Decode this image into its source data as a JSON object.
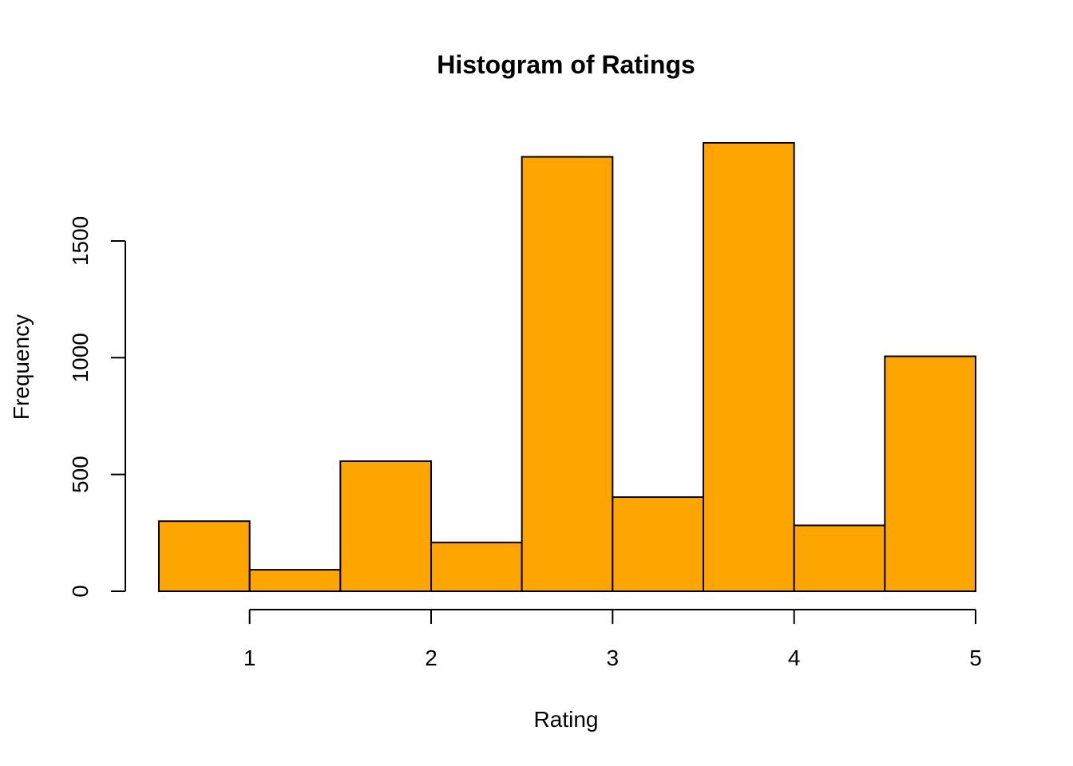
{
  "chart_data": {
    "type": "bar",
    "title": "Histogram of Ratings",
    "xlabel": "Rating",
    "ylabel": "Frequency",
    "bins": [
      {
        "start": 0.5,
        "end": 1.0,
        "value": 300
      },
      {
        "start": 1.0,
        "end": 1.5,
        "value": 92
      },
      {
        "start": 1.5,
        "end": 2.0,
        "value": 557
      },
      {
        "start": 2.0,
        "end": 2.5,
        "value": 209
      },
      {
        "start": 2.5,
        "end": 3.0,
        "value": 1860
      },
      {
        "start": 3.0,
        "end": 3.5,
        "value": 403
      },
      {
        "start": 3.5,
        "end": 4.0,
        "value": 1920
      },
      {
        "start": 4.0,
        "end": 4.5,
        "value": 282
      },
      {
        "start": 4.5,
        "end": 5.0,
        "value": 1006
      }
    ],
    "xticks": [
      1,
      2,
      3,
      4,
      5
    ],
    "xtick_labels": [
      "1",
      "2",
      "3",
      "4",
      "5"
    ],
    "yticks": [
      0,
      500,
      1000,
      1500
    ],
    "ytick_labels": [
      "0",
      "500",
      "1000",
      "1500"
    ],
    "xlim": [
      0.5,
      5.0
    ],
    "ylim": [
      0,
      1920
    ],
    "bar_color": "#FFA500",
    "edge_color": "#000000",
    "grid": false,
    "legend": "none"
  }
}
